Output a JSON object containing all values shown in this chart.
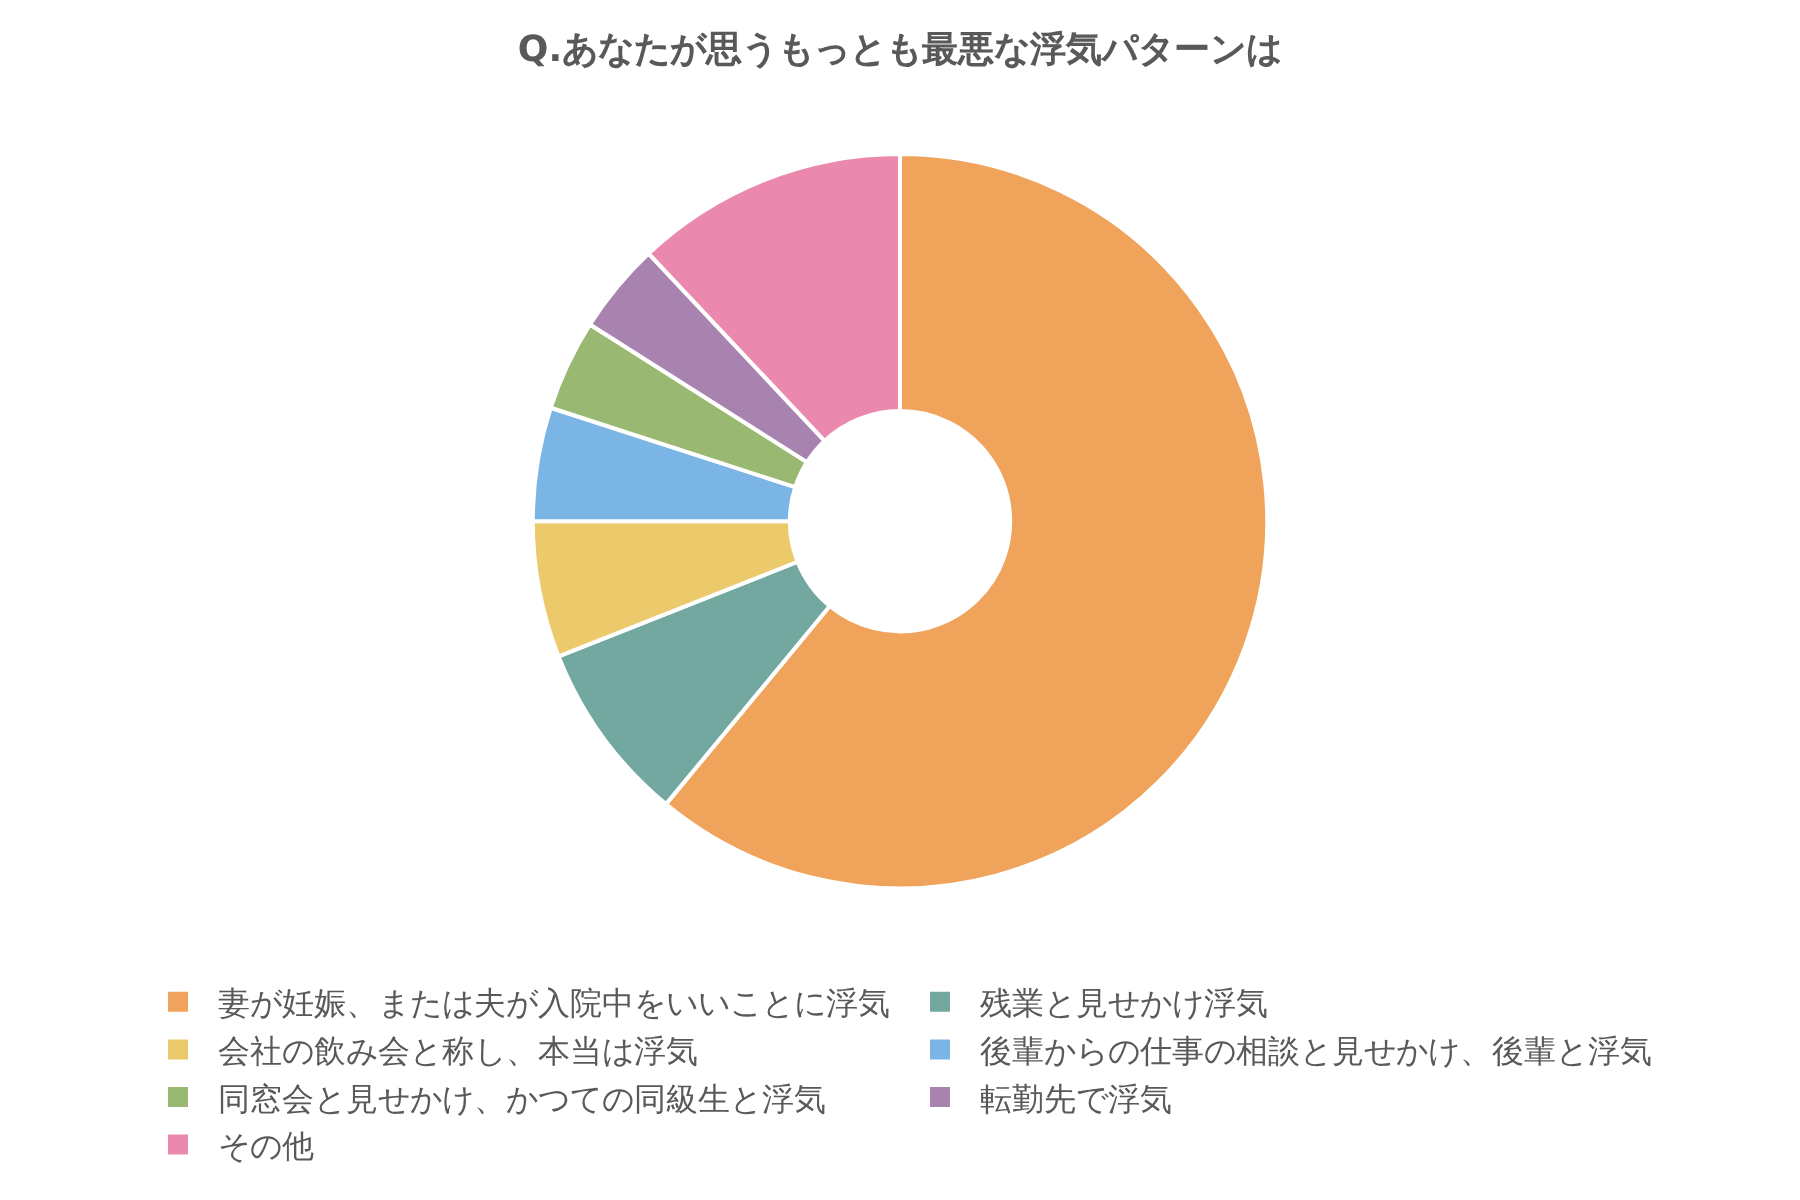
{
  "chart_data": {
    "type": "donut",
    "title": "Q.あなたが思うもっとも最悪な浮気パターンは",
    "categories": [
      "妻が妊娠、または夫が入院中をいいことに浮気",
      "残業と見せかけ浮気",
      "会社の飲み会と称し、本当は浮気",
      "後輩からの仕事の相談と見せかけ、後輩と浮気",
      "同窓会と見せかけ、かつての同級生と浮気",
      "転勤先で浮気",
      "その他"
    ],
    "values": [
      61,
      8,
      6,
      5,
      4,
      4,
      12
    ],
    "colors": [
      "#f0a35a",
      "#72a8a0",
      "#ecc96a",
      "#7ab5e5",
      "#99b872",
      "#a983b0",
      "#ea88ad"
    ],
    "legend": "bottom"
  }
}
